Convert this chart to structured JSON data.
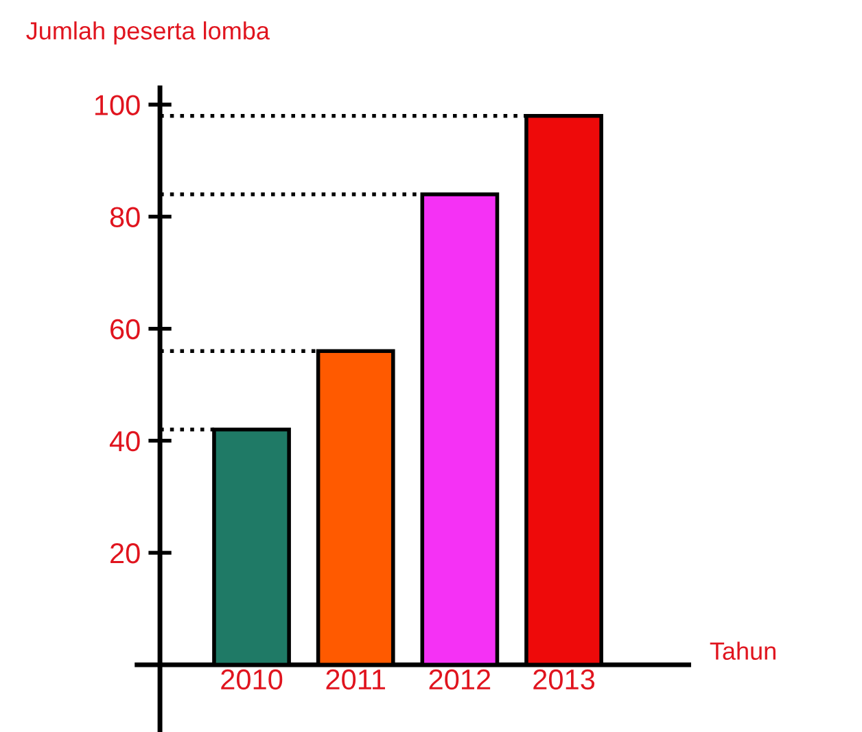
{
  "chart_data": {
    "type": "bar",
    "ylabel": "Jumlah peserta lomba",
    "xlabel": "Tahun",
    "categories": [
      "2010",
      "2011",
      "2012",
      "2013"
    ],
    "values": [
      42,
      56,
      84,
      98
    ],
    "colors": [
      "#1f7a66",
      "#ff5a00",
      "#f531f5",
      "#ee0a0a"
    ],
    "ylim": [
      -12,
      103
    ],
    "yticks": [
      20,
      40,
      60,
      80,
      100
    ],
    "grid": false,
    "legend": false,
    "ref_lines": [
      {
        "axis": "y",
        "value": 42,
        "color": "#000000",
        "line_style": "dotted"
      },
      {
        "axis": "y",
        "value": 56,
        "color": "#000000",
        "line_style": "dotted"
      },
      {
        "axis": "y",
        "value": 84,
        "color": "#000000",
        "line_style": "dotted"
      },
      {
        "axis": "y",
        "value": 98,
        "color": "#000000",
        "line_style": "dotted"
      }
    ]
  }
}
